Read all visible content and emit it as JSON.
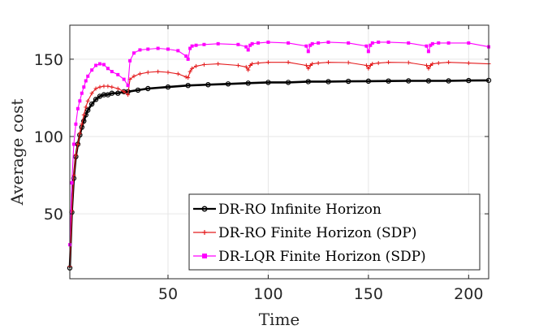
{
  "chart_data": {
    "type": "line",
    "title": "",
    "xlabel": "Time",
    "ylabel": "Average cost",
    "xlim": [
      1,
      210
    ],
    "ylim": [
      8,
      172
    ],
    "xticks": [
      50,
      100,
      150,
      200
    ],
    "yticks": [
      50,
      100,
      150
    ],
    "grid": true,
    "legend_position": "bottom-right",
    "series": [
      {
        "name": "DR-RO Infinite Horizon",
        "color": "#000000",
        "marker": "circle",
        "x": [
          1,
          2,
          3,
          4,
          5,
          6,
          7,
          8,
          9,
          10,
          12,
          14,
          16,
          18,
          20,
          22,
          25,
          28,
          30,
          35,
          40,
          50,
          60,
          70,
          80,
          90,
          100,
          110,
          120,
          130,
          140,
          150,
          160,
          170,
          180,
          190,
          200,
          210
        ],
        "y": [
          15,
          51,
          73,
          87,
          95,
          101,
          106,
          110,
          114,
          117,
          121,
          124,
          126,
          127,
          127,
          128,
          128,
          129,
          129,
          130,
          131,
          132,
          133,
          133.5,
          134,
          134.5,
          135,
          135,
          135.5,
          135.5,
          135.7,
          135.8,
          135.9,
          136,
          136,
          136,
          136.2,
          136.3
        ]
      },
      {
        "name": "DR-RO Finite Horizon (SDP)",
        "color": "#e41a1c",
        "marker": "plus",
        "x": [
          1,
          2,
          3,
          4,
          5,
          6,
          7,
          8,
          9,
          10,
          12,
          14,
          16,
          18,
          20,
          22,
          25,
          28,
          30,
          31,
          33,
          36,
          40,
          45,
          50,
          55,
          59,
          60,
          61,
          62,
          64,
          68,
          75,
          85,
          89,
          90,
          91,
          92,
          95,
          100,
          110,
          119,
          120,
          121,
          122,
          125,
          130,
          140,
          149,
          150,
          151,
          152,
          155,
          160,
          170,
          179,
          180,
          181,
          182,
          185,
          190,
          200,
          210
        ],
        "y": [
          16,
          52,
          75,
          88,
          95,
          102,
          108,
          114,
          119,
          123,
          128,
          131,
          132,
          132.5,
          132.5,
          132,
          131,
          129,
          127,
          137,
          139,
          140.5,
          141.5,
          142,
          141.5,
          140.5,
          138.5,
          138,
          142,
          144,
          145.5,
          146.5,
          147,
          146,
          145,
          143,
          146,
          147,
          147.5,
          148,
          148,
          146,
          144,
          146,
          147,
          147.5,
          148,
          147.8,
          146,
          144,
          146,
          147,
          147.5,
          148,
          147.8,
          146,
          144,
          146,
          147,
          147.5,
          148,
          147.5,
          147
        ]
      },
      {
        "name": "DR-LQR Finite Horizon (SDP)",
        "color": "#ff00ff",
        "marker": "square",
        "x": [
          1,
          2,
          3,
          4,
          5,
          6,
          7,
          8,
          9,
          10,
          12,
          14,
          16,
          18,
          20,
          22,
          25,
          28,
          30,
          31,
          33,
          36,
          40,
          45,
          50,
          55,
          59,
          60,
          61,
          62,
          64,
          68,
          75,
          85,
          89,
          90,
          91,
          92,
          95,
          100,
          110,
          119,
          120,
          121,
          122,
          125,
          130,
          140,
          149,
          150,
          151,
          152,
          155,
          160,
          170,
          179,
          180,
          181,
          182,
          185,
          190,
          200,
          210
        ],
        "y": [
          30,
          70,
          95,
          108,
          118,
          123,
          128,
          132,
          136,
          139,
          143,
          146,
          147,
          146.5,
          144,
          142,
          140,
          137,
          133,
          149,
          154,
          156,
          156.5,
          157,
          156.5,
          155.5,
          152,
          150,
          157,
          158.5,
          159,
          159.5,
          160,
          159.5,
          158,
          156,
          159,
          160,
          160.5,
          161,
          160.5,
          158.5,
          155,
          159,
          160,
          160.5,
          161,
          160.5,
          158.5,
          155,
          159,
          160.5,
          161,
          161,
          160.5,
          158.5,
          155,
          159,
          160,
          160.5,
          160.5,
          160.5,
          158
        ]
      }
    ]
  }
}
